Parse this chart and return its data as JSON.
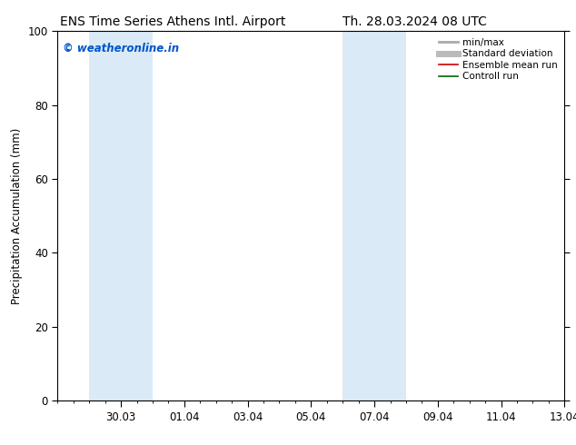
{
  "title_left": "ENS Time Series Athens Intl. Airport",
  "title_right": "Th. 28.03.2024 08 UTC",
  "ylabel": "Precipitation Accumulation (mm)",
  "watermark": "© weatheronline.in",
  "watermark_color": "#0055cc",
  "ylim": [
    0,
    100
  ],
  "yticks": [
    0,
    20,
    40,
    60,
    80,
    100
  ],
  "xlim": [
    0,
    16
  ],
  "xtick_labels": [
    "30.03",
    "01.04",
    "03.04",
    "05.04",
    "07.04",
    "09.04",
    "11.04",
    "13.04"
  ],
  "xtick_positions": [
    2,
    4,
    6,
    8,
    10,
    12,
    14,
    16
  ],
  "shaded_bands": [
    {
      "x_start": 1.0,
      "x_end": 3.0
    },
    {
      "x_start": 9.0,
      "x_end": 11.0
    }
  ],
  "shaded_color": "#daeaf7",
  "background_color": "#ffffff",
  "legend_entries": [
    {
      "label": "min/max",
      "color": "#aaaaaa",
      "lw": 2.0
    },
    {
      "label": "Standard deviation",
      "color": "#bbbbbb",
      "lw": 5.0
    },
    {
      "label": "Ensemble mean run",
      "color": "#cc0000",
      "lw": 1.2
    },
    {
      "label": "Controll run",
      "color": "#006600",
      "lw": 1.2
    }
  ],
  "spine_color": "#000000",
  "tick_color": "#000000",
  "title_fontsize": 10,
  "label_fontsize": 8.5,
  "watermark_fontsize": 8.5,
  "legend_fontsize": 7.5
}
